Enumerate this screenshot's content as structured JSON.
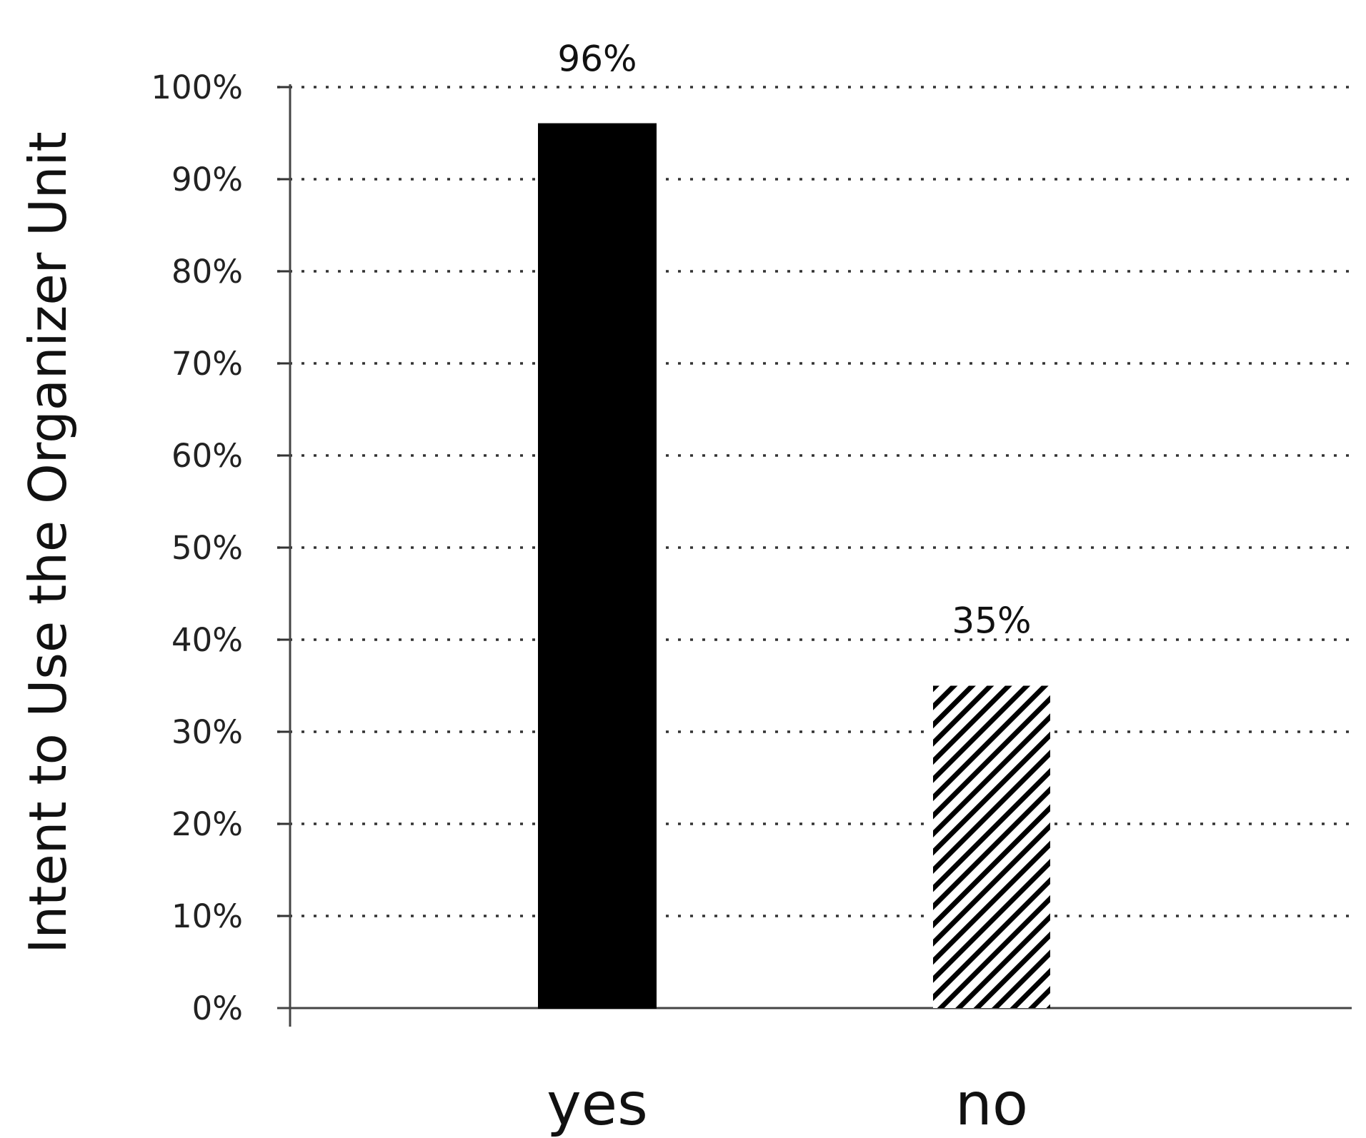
{
  "chart_data": {
    "type": "bar",
    "categories": [
      "yes",
      "no"
    ],
    "values": [
      96,
      35
    ],
    "value_labels": [
      "96%",
      "35%"
    ],
    "bar_styles": [
      "solid",
      "hatched"
    ],
    "bar_colors": [
      "#000000",
      "#000000"
    ],
    "title": "",
    "xlabel": "",
    "ylabel": "Intent to Use the Organizer Unit",
    "ylim": [
      0,
      100
    ],
    "yticks": [
      0,
      10,
      20,
      30,
      40,
      50,
      60,
      70,
      80,
      90,
      100
    ],
    "ytick_labels": [
      "0%",
      "10%",
      "20%",
      "30%",
      "40%",
      "50%",
      "60%",
      "70%",
      "80%",
      "90%",
      "100%"
    ],
    "grid": "horizontal-dotted",
    "legend": "none"
  }
}
